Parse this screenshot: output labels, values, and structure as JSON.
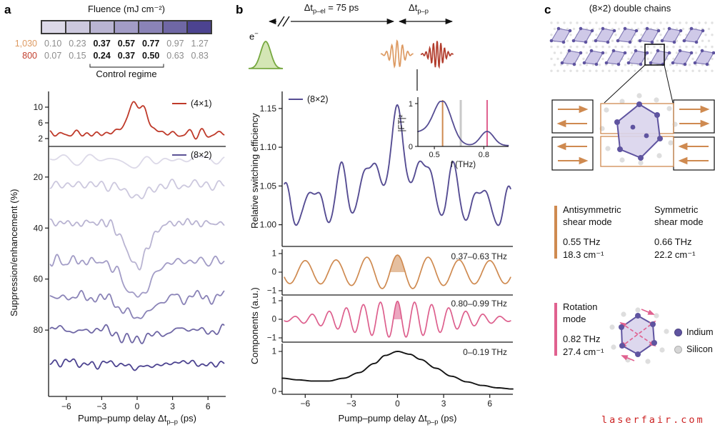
{
  "figure": {
    "watermark": "laserfair.com"
  },
  "panel_a": {
    "label": "a",
    "colorbar": {
      "title": "Fluence (mJ cm⁻²)",
      "border_color": "#3a3a3a",
      "colors": [
        "#dcd9e8",
        "#ccc8de",
        "#b9b4d2",
        "#a29cc6",
        "#8a83b7",
        "#6f67a5",
        "#4c4390"
      ],
      "rows": [
        {
          "label": "1,030",
          "label_color": "#dd9a62",
          "values": [
            "0.10",
            "0.23",
            "0.37",
            "0.57",
            "0.77",
            "0.97",
            "1.27"
          ],
          "bold_indices": [
            2,
            3,
            4
          ]
        },
        {
          "label": "800",
          "label_color": "#c2402f",
          "values": [
            "0.07",
            "0.15",
            "0.24",
            "0.37",
            "0.50",
            "0.63",
            "0.83"
          ],
          "bold_indices": [
            2,
            3,
            4
          ]
        }
      ],
      "control_label": "Control regime"
    },
    "ylabel": "Suppression/enhancement (%)",
    "xlabel": {
      "pre": "Pump–pump delay Δt",
      "sub": "p–p",
      "post": " (ps)"
    }
  },
  "panel_b": {
    "label": "b",
    "timing": {
      "delay_label": {
        "pre": "Δt",
        "sub": "p–el",
        "post": " = 75 ps"
      },
      "pp_label": {
        "pre": "Δt",
        "sub": "p–p",
        "post": ""
      },
      "electron_label": {
        "base": "e",
        "sup": "−"
      }
    },
    "ylabel": "Relative switching efficiency",
    "components_ylabel": "Components (a.u.)",
    "xlabel": {
      "pre": "Pump–pump delay Δt",
      "sub": "p–p",
      "post": " (ps)"
    }
  },
  "panel_c": {
    "label": "c",
    "title": "(8×2) double chains",
    "modes": [
      {
        "name_lines": [
          "Antisymmetric",
          "shear mode"
        ],
        "freq": "0.55 THz",
        "wavenumber": "18.3 cm⁻¹",
        "bar_color": "#cf8a50"
      },
      {
        "name_lines": [
          "Symmetric",
          "shear mode"
        ],
        "freq": "0.66 THz",
        "wavenumber": "22.2 cm⁻¹"
      },
      {
        "name_lines": [
          "Rotation",
          "mode"
        ],
        "freq": "0.82 THz",
        "wavenumber": "27.4 cm⁻¹",
        "bar_color": "#e0618f"
      }
    ],
    "legend": [
      {
        "label": "Indium",
        "color": "#5f54a0"
      },
      {
        "label": "Silicon",
        "color": "#d6d6d6"
      }
    ]
  },
  "chart_data": [
    {
      "id": "a-top",
      "type": "line",
      "panel": "a",
      "legend": "(4×1)",
      "color": "#bf3a2a",
      "xlim": [
        -7.5,
        7.5
      ],
      "ylim": [
        0,
        14
      ],
      "yticks": [
        2,
        6,
        10
      ],
      "description": "Noisy enhancement trace of the (4×1) phase, baseline ≈3% peaking ≈11% at zero pump–pump delay",
      "model": {
        "baseline": 3.2,
        "peak_amp": 7.8,
        "peak_center": 0,
        "peak_sigma": 0.8,
        "noise": 0.55,
        "seed": 11
      }
    },
    {
      "id": "a-bottom",
      "type": "line",
      "panel": "a",
      "legend": "(8×2)",
      "color": "#5b5296",
      "xlim": [
        -7.5,
        7.5
      ],
      "xticks": [
        -6,
        -3,
        0,
        3,
        6
      ],
      "ylim": [
        8,
        106
      ],
      "y_inverted": true,
      "yticks": [
        20,
        40,
        60,
        80
      ],
      "xlabel": "Pump–pump delay Δt_p–p (ps)",
      "ylabel": "Suppression/enhancement (%)",
      "description": "Suppression traces of the (8×2) phase for increasing fluence (light → dark purple), with dips near zero delay",
      "series": [
        {
          "fluence": "0.10",
          "color": "#dcd9e8",
          "base": 13,
          "dip": 2,
          "sigma": 1.0,
          "noise": 0.9,
          "seed": 21
        },
        {
          "fluence": "0.23",
          "color": "#ccc8de",
          "base": 23,
          "dip": 4.5,
          "sigma": 1.0,
          "noise": 1.0,
          "seed": 22
        },
        {
          "fluence": "0.37",
          "color": "#b9b4d2",
          "base": 38,
          "dip": 17,
          "sigma": 0.9,
          "noise": 1.1,
          "seed": 23
        },
        {
          "fluence": "0.57",
          "color": "#a29cc6",
          "base": 53,
          "dip": 14,
          "sigma": 1.1,
          "noise": 1.2,
          "seed": 24
        },
        {
          "fluence": "0.77",
          "color": "#8a83b7",
          "base": 67,
          "dip": 8,
          "sigma": 1.2,
          "noise": 1.1,
          "seed": 25
        },
        {
          "fluence": "0.97",
          "color": "#6f67a5",
          "base": 80,
          "dip": 4,
          "sigma": 1.2,
          "noise": 1.0,
          "seed": 26
        },
        {
          "fluence": "1.27",
          "color": "#4c4390",
          "base": 93,
          "dip": 1.5,
          "sigma": 1.2,
          "noise": 0.9,
          "seed": 27
        }
      ]
    },
    {
      "id": "b-main",
      "type": "line",
      "panel": "b",
      "legend": "(8×2)",
      "color": "#564d93",
      "xlim": [
        -7.5,
        7.5
      ],
      "xticks": [
        -6,
        -3,
        0,
        3,
        6
      ],
      "ylim": [
        0.972,
        1.172
      ],
      "yticks": [
        1.0,
        1.05,
        1.1,
        1.15
      ],
      "ytick_labels": [
        "1.00",
        "1.05",
        "1.10",
        "1.15"
      ],
      "ylabel": "Relative switching efficiency",
      "xlabel": "Pump–pump delay Δt_p–p (ps)",
      "peak_value": 1.145,
      "model": {
        "base": 1.021,
        "peak_amp": 0.048,
        "peak_sigma": 0.8,
        "slow_amp": 0.04,
        "slow_sigma": 3.0,
        "mode_env_sigma": 8,
        "noise": 0.0045,
        "seed": 7,
        "modes": [
          {
            "f_thz": 0.55,
            "amp": 0.03
          },
          {
            "f_thz": 0.82,
            "amp": 0.008
          }
        ]
      }
    },
    {
      "id": "b-inset-ft",
      "type": "line",
      "panel": "b",
      "ylabel": "|FT|²",
      "xlabel": "f (THz)",
      "xlim": [
        0.4,
        0.95
      ],
      "xticks": [
        "0.5",
        "0.8"
      ],
      "yticks": [
        0,
        1
      ],
      "color": "#564d93",
      "peaks": [
        {
          "f_thz": 0.55,
          "height": 1.0,
          "width": 0.055
        },
        {
          "f_thz": 0.82,
          "height": 0.33,
          "width": 0.04
        }
      ],
      "left_shoulder": {
        "f_thz": 0.4,
        "height": 0.3,
        "width": 0.08
      },
      "marker_lines": [
        {
          "f_thz": 0.55,
          "color": "#cf8a50"
        },
        {
          "f_thz": 0.66,
          "color": "#c9c9c9"
        },
        {
          "f_thz": 0.82,
          "color": "#e0618f"
        }
      ]
    },
    {
      "id": "b-component-shear",
      "type": "line",
      "panel": "b",
      "band_label": "0.37–0.63 THz",
      "color": "#cf8a50",
      "xlim": [
        -7.5,
        7.5
      ],
      "yticks": [
        1,
        0,
        -1
      ],
      "model": {
        "f_thz": 0.5,
        "base_amp": 0.62,
        "center_amp": 0.3,
        "center_sigma": 2.0,
        "fill_lobe_halfwidth_ps": 0.5
      }
    },
    {
      "id": "b-component-rotation",
      "type": "line",
      "panel": "b",
      "band_label": "0.80–0.99 THz",
      "color": "#dd5f8d",
      "xlim": [
        -7.5,
        7.5
      ],
      "yticks": [
        1,
        0,
        -1
      ],
      "model": {
        "f_thz": 0.9,
        "amp": 0.97,
        "env_sigma": 3.5,
        "fill_lobe_halfwidth_ps": 0.28
      }
    },
    {
      "id": "b-component-slow",
      "type": "line",
      "panel": "b",
      "band_label": "0–0.19 THz",
      "color": "#141414",
      "xlim": [
        -7.5,
        7.5
      ],
      "xticks": [
        -6,
        -3,
        0,
        3,
        6
      ],
      "yticks": [
        1,
        0
      ],
      "points": [
        [
          -7.5,
          0.33
        ],
        [
          -6.5,
          0.29
        ],
        [
          -5.5,
          0.26
        ],
        [
          -4.5,
          0.26
        ],
        [
          -3.5,
          0.33
        ],
        [
          -2.5,
          0.47
        ],
        [
          -1.5,
          0.7
        ],
        [
          -0.8,
          0.9
        ],
        [
          0,
          1.0
        ],
        [
          0.8,
          0.93
        ],
        [
          1.5,
          0.8
        ],
        [
          2.5,
          0.58
        ],
        [
          3.5,
          0.38
        ],
        [
          4.5,
          0.24
        ],
        [
          5.5,
          0.15
        ],
        [
          6.5,
          0.09
        ],
        [
          7.5,
          0.06
        ]
      ]
    }
  ]
}
